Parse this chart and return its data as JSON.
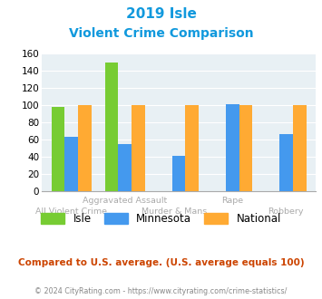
{
  "title_line1": "2019 Isle",
  "title_line2": "Violent Crime Comparison",
  "categories": [
    "All Violent Crime",
    "Aggravated Assault",
    "Murder & Mans...",
    "Rape",
    "Robbery"
  ],
  "series": {
    "Isle": [
      98,
      150,
      0,
      0,
      0
    ],
    "Minnesota": [
      63,
      55,
      41,
      101,
      67
    ],
    "National": [
      100,
      100,
      100,
      100,
      100
    ]
  },
  "colors": {
    "Isle": "#77cc33",
    "Minnesota": "#4499ee",
    "National": "#ffaa33"
  },
  "ylim": [
    0,
    160
  ],
  "yticks": [
    0,
    20,
    40,
    60,
    80,
    100,
    120,
    140,
    160
  ],
  "footnote": "Compared to U.S. average. (U.S. average equals 100)",
  "copyright": "© 2024 CityRating.com - https://www.cityrating.com/crime-statistics/",
  "bg_color": "#e8f0f4",
  "title_color": "#1199dd",
  "footnote_color": "#cc4400",
  "copyright_color": "#888888",
  "bar_width": 0.25
}
